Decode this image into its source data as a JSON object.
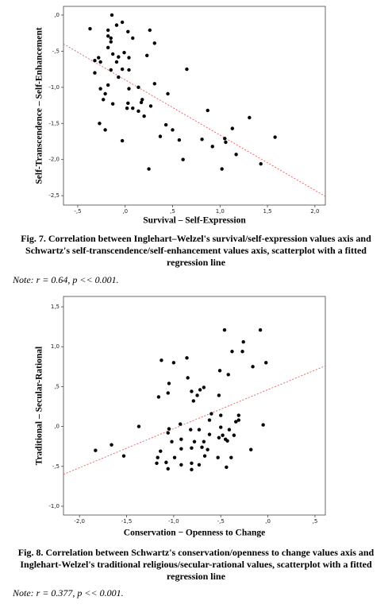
{
  "chart_data": [
    {
      "type": "scatter",
      "x_label": "Survival – Self-Expression",
      "y_label": "Self-Transcendence – Self-Enhancement",
      "caption": "Fig. 7. Correlation between Inglehart–Welzel's survival/self-expression values axis and Schwartz's self-transcendence/self-enhancement values axis, scatterplot with a fitted regression line",
      "note": "Note: r = 0.64, p << 0.001.",
      "color": "#000000",
      "xlim": [
        -0.65,
        2.11
      ],
      "ylim": [
        -2.63,
        0.12
      ],
      "xticks": [
        {
          "value": -0.5,
          "label": "-,5"
        },
        {
          "value": 0,
          "label": ",0"
        },
        {
          "value": 0.5,
          "label": ",5"
        },
        {
          "value": 1,
          "label": "1,0"
        },
        {
          "value": 1.5,
          "label": "1,5"
        },
        {
          "value": 2,
          "label": "2,0"
        }
      ],
      "yticks": [
        {
          "value": 0,
          "label": ",0"
        },
        {
          "value": -0.5,
          "label": "-,5"
        },
        {
          "value": -1,
          "label": "-1,0"
        },
        {
          "value": -1.5,
          "label": "-1,5"
        },
        {
          "value": -2,
          "label": "-2,0"
        },
        {
          "value": -2.5,
          "label": "-2,5"
        }
      ],
      "fit": {
        "x": [
          -0.65,
          2.11
        ],
        "y": [
          -0.4,
          -2.51
        ],
        "color": "#e06060"
      },
      "x": [
        -0.14,
        -0.37,
        -0.03,
        -0.09,
        -0.18,
        0.03,
        -0.18,
        0.26,
        -0.15,
        0.08,
        0.31,
        -0.15,
        -0.18,
        -0.13,
        -0.01,
        -0.28,
        -0.32,
        -0.26,
        -0.07,
        -0.09,
        0.23,
        0.04,
        -0.32,
        -0.03,
        0.04,
        -0.15,
        -0.07,
        0.65,
        -0.18,
        -0.26,
        0.31,
        0.14,
        -0.21,
        0.04,
        0.45,
        -0.23,
        0.03,
        -0.13,
        0.18,
        0.08,
        0.02,
        0.27,
        0.14,
        0.17,
        0.2,
        0.87,
        -0.27,
        -0.21,
        0.43,
        0.5,
        1.13,
        1.31,
        0.37,
        0.57,
        -0.03,
        0.81,
        0.92,
        1.05,
        1.06,
        1.17,
        1.58,
        0.61,
        1.43,
        0.25,
        1.02
      ],
      "y": [
        0.0,
        -0.19,
        -0.1,
        -0.14,
        -0.21,
        -0.23,
        -0.29,
        -0.21,
        -0.32,
        -0.32,
        -0.39,
        -0.37,
        -0.45,
        -0.54,
        -0.52,
        -0.59,
        -0.63,
        -0.65,
        -0.58,
        -0.65,
        -0.56,
        -0.59,
        -0.8,
        -0.75,
        -0.76,
        -0.76,
        -0.86,
        -0.75,
        -0.97,
        -1.02,
        -0.95,
        -1.0,
        -1.09,
        -1.02,
        -1.09,
        -1.17,
        -1.22,
        -1.23,
        -1.17,
        -1.29,
        -1.29,
        -1.26,
        -1.33,
        -1.21,
        -1.4,
        -1.32,
        -1.5,
        -1.59,
        -1.52,
        -1.59,
        -1.57,
        -1.42,
        -1.68,
        -1.73,
        -1.74,
        -1.72,
        -1.82,
        -1.71,
        -1.76,
        -1.93,
        -1.69,
        -2.0,
        -2.06,
        -2.13,
        -2.13
      ]
    },
    {
      "type": "scatter",
      "x_label": "Conservation − Openness to Change",
      "y_label": "Traditional – Secular-Rational",
      "caption": "Fig. 8. Correlation between Schwartz's conservation/openness to change values axis and Inglehart-Welzel's traditional religious/secular-rational values, scatterplot with a fitted regression line",
      "note": "Note: r = 0.377, p << 0.001.",
      "color": "#000000",
      "xlim": [
        -2.17,
        0.61
      ],
      "ylim": [
        -1.11,
        1.63
      ],
      "xticks": [
        {
          "value": -2,
          "label": "-2,0"
        },
        {
          "value": -1.5,
          "label": "-1,5"
        },
        {
          "value": -1,
          "label": "-1,0"
        },
        {
          "value": -0.5,
          "label": "-,5"
        },
        {
          "value": 0,
          "label": ",0"
        },
        {
          "value": 0.5,
          "label": ",5"
        }
      ],
      "yticks": [
        {
          "value": 1.5,
          "label": "1,5"
        },
        {
          "value": 1,
          "label": "1,0"
        },
        {
          "value": 0.5,
          "label": ",5"
        },
        {
          "value": 0,
          "label": ",0"
        },
        {
          "value": -0.5,
          "label": "-,5"
        },
        {
          "value": -1,
          "label": "-1,0"
        }
      ],
      "fit": {
        "x": [
          -2.17,
          0.61
        ],
        "y": [
          -0.6,
          0.76
        ],
        "color": "#e06060"
      },
      "x": [
        -0.46,
        -0.08,
        -0.26,
        -0.38,
        -0.27,
        -0.02,
        -0.16,
        -0.86,
        -1.13,
        -1.0,
        -0.51,
        -0.42,
        -0.85,
        -1.05,
        -0.68,
        -0.72,
        -0.81,
        -0.75,
        -1.06,
        -1.16,
        -0.52,
        -0.79,
        -0.6,
        -0.5,
        -0.62,
        -0.31,
        -0.31,
        -0.34,
        -1.37,
        -1.05,
        -1.06,
        -0.93,
        -0.82,
        -0.73,
        -0.5,
        -0.41,
        -0.62,
        -0.48,
        -0.36,
        -0.05,
        -0.92,
        -0.78,
        -0.68,
        -0.52,
        -0.45,
        -0.43,
        -1.66,
        -1.02,
        -0.92,
        -0.7,
        -0.81,
        -1.83,
        -1.14,
        -0.64,
        -0.18,
        -1.53,
        -1.17,
        -0.99,
        -1.08,
        -1.18,
        -0.81,
        -0.92,
        -0.73,
        -0.39,
        -0.53,
        -0.67,
        -0.44,
        -1.06,
        -0.81
      ],
      "y": [
        1.21,
        1.21,
        1.06,
        0.94,
        0.94,
        0.8,
        0.75,
        0.86,
        0.83,
        0.8,
        0.7,
        0.65,
        0.61,
        0.54,
        0.49,
        0.46,
        0.44,
        0.39,
        0.42,
        0.37,
        0.39,
        0.32,
        0.16,
        0.14,
        0.08,
        0.14,
        0.08,
        0.06,
        0.0,
        -0.03,
        -0.08,
        0.03,
        -0.04,
        -0.04,
        -0.01,
        -0.04,
        -0.1,
        -0.11,
        -0.11,
        0.02,
        -0.16,
        -0.19,
        -0.19,
        -0.14,
        -0.16,
        -0.18,
        -0.23,
        -0.19,
        -0.28,
        -0.26,
        -0.27,
        -0.3,
        -0.31,
        -0.29,
        -0.29,
        -0.37,
        -0.39,
        -0.39,
        -0.45,
        -0.46,
        -0.46,
        -0.48,
        -0.48,
        -0.39,
        -0.39,
        -0.37,
        -0.51,
        -0.53,
        -0.54
      ]
    }
  ]
}
